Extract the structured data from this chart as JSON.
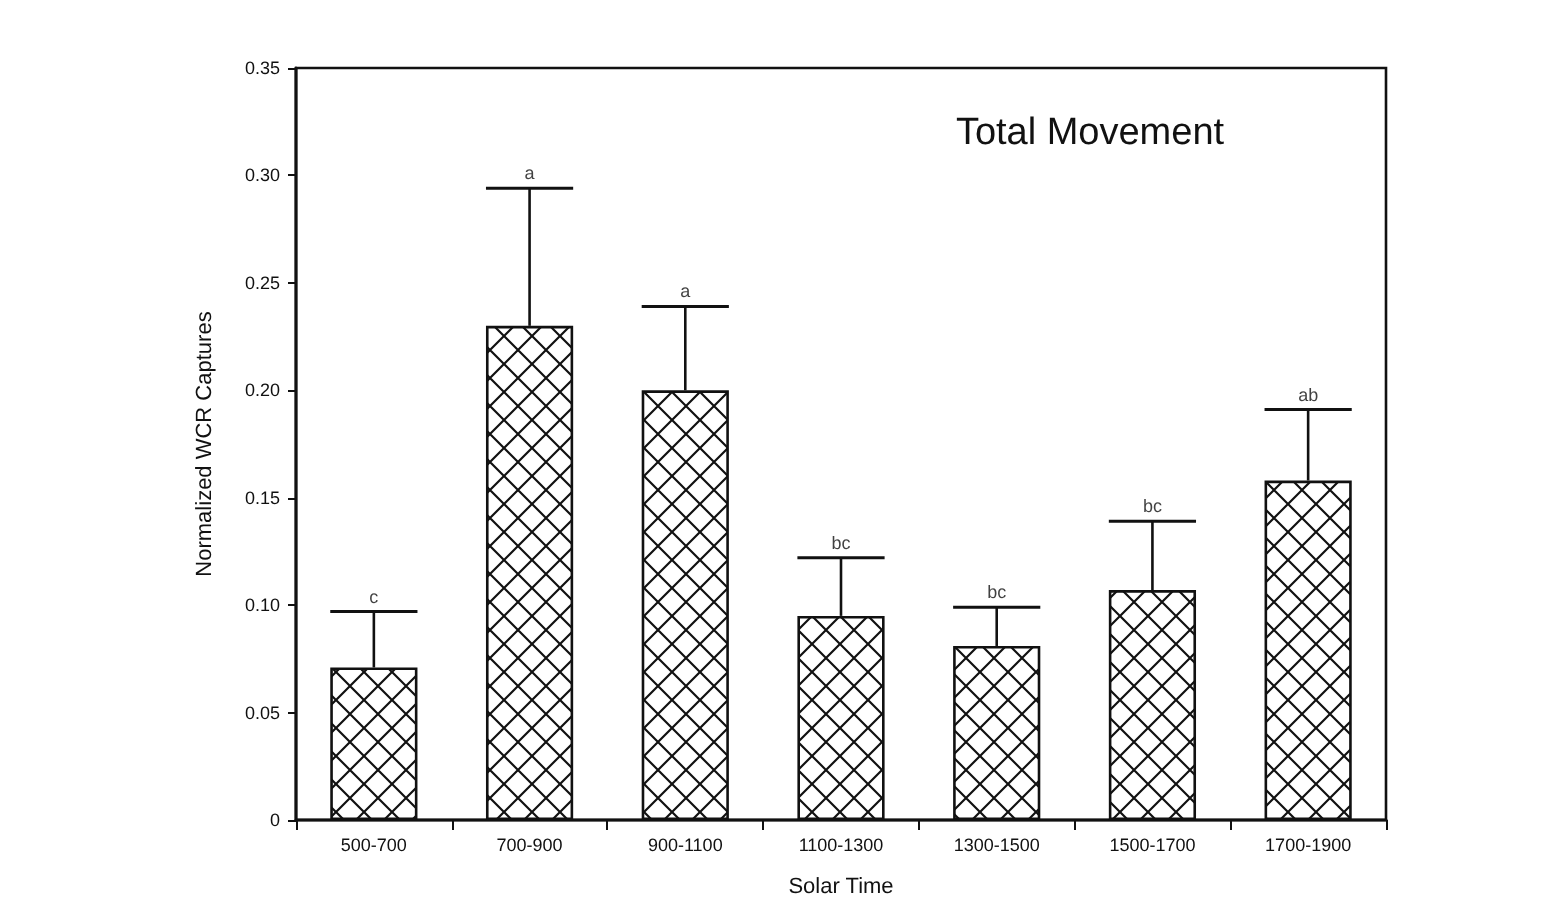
{
  "chart_data": {
    "type": "bar",
    "title": "Total Movement",
    "xlabel": "Solar Time",
    "ylabel": "Normalized WCR Captures",
    "categories": [
      "500-700",
      "700-900",
      "900-1100",
      "1100-1300",
      "1300-1500",
      "1500-1700",
      "1700-1900"
    ],
    "values": [
      0.071,
      0.23,
      0.2,
      0.095,
      0.081,
      0.107,
      0.158
    ],
    "errors": [
      [
        0.071,
        0.097
      ],
      [
        0.23,
        0.294
      ],
      [
        0.2,
        0.239
      ],
      [
        0.095,
        0.122
      ],
      [
        0.081,
        0.099
      ],
      [
        0.107,
        0.139
      ],
      [
        0.158,
        0.191
      ]
    ],
    "color": "#111111",
    "ylim": [
      0,
      0.35
    ],
    "yticks": [
      {
        "value": 0,
        "label": "0"
      },
      {
        "value": 0.05,
        "label": "0.05"
      },
      {
        "value": 0.1,
        "label": "0.10"
      },
      {
        "value": 0.15,
        "label": "0.15"
      },
      {
        "value": 0.2,
        "label": "0.20"
      },
      {
        "value": 0.25,
        "label": "0.25"
      },
      {
        "value": 0.3,
        "label": "0.30"
      },
      {
        "value": 0.35,
        "label": "0.35"
      }
    ],
    "grid": false,
    "annotations": [
      {
        "text": "c",
        "x": "500-700",
        "y": 0.097
      },
      {
        "text": "a",
        "x": "700-900",
        "y": 0.294
      },
      {
        "text": "a",
        "x": "900-1100",
        "y": 0.239
      },
      {
        "text": "bc",
        "x": "1100-1300",
        "y": 0.122
      },
      {
        "text": "bc",
        "x": "1300-1500",
        "y": 0.099
      },
      {
        "text": "bc",
        "x": "1500-1700",
        "y": 0.139
      },
      {
        "text": "ab",
        "x": "1700-1900",
        "y": 0.191
      }
    ]
  }
}
